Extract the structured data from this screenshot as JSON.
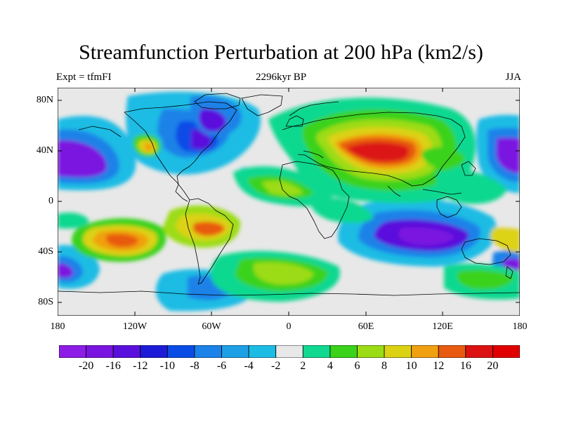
{
  "title": "Streamfunction Perturbation at 200 hPa (km2/s)",
  "left_string": "Expt = tfmFI",
  "center_string": "2296kyr BP",
  "right_string": "JJA",
  "lat_labels": [
    "80N",
    "40N",
    "0",
    "40S",
    "80S"
  ],
  "lon_labels": [
    "180",
    "120W",
    "60W",
    "0",
    "60E",
    "120E",
    "180"
  ],
  "colorbar": {
    "labels": [
      "-20",
      "-16",
      "-12",
      "-10",
      "-8",
      "-6",
      "-4",
      "-2",
      "2",
      "4",
      "6",
      "8",
      "10",
      "12",
      "16",
      "20"
    ],
    "colors": [
      "#8c1ce6",
      "#7a14e0",
      "#5a10dc",
      "#1c1cd8",
      "#0a4ce6",
      "#1a82e8",
      "#1ea0e6",
      "#1cbce4",
      "#e8e8e8",
      "#10d890",
      "#3ad21a",
      "#9cdc14",
      "#dcd214",
      "#f0a010",
      "#e85a10",
      "#dc1212",
      "#e00000"
    ]
  }
}
